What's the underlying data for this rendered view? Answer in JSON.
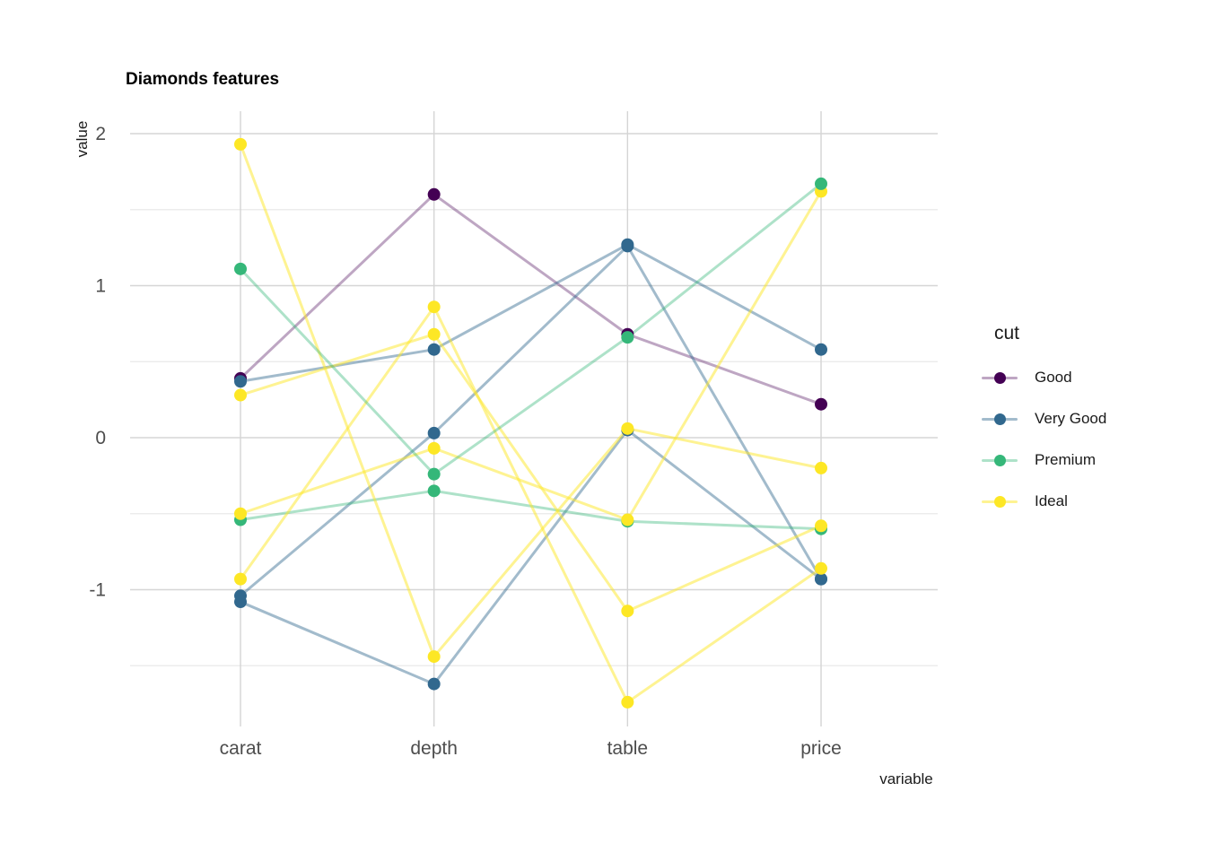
{
  "chart_data": {
    "type": "line",
    "subtype": "parallel-coordinates",
    "title": "Diamonds features",
    "xlabel": "variable",
    "ylabel": "value",
    "categories": [
      "carat",
      "depth",
      "table",
      "price"
    ],
    "y_ticks": [
      2,
      1,
      0,
      -1
    ],
    "y_minor_ticks": [
      1.5,
      0.5,
      -0.5,
      -1.5
    ],
    "ylim": [
      -1.9,
      2.15
    ],
    "grid": "on",
    "legend": {
      "title": "cut",
      "position": "right",
      "entries": [
        {
          "label": "Good",
          "color": "#440154"
        },
        {
          "label": "Very Good",
          "color": "#31688e"
        },
        {
          "label": "Premium",
          "color": "#35b779"
        },
        {
          "label": "Ideal",
          "color": "#fde725"
        }
      ]
    },
    "rows": [
      {
        "cut": "Good",
        "values": [
          0.39,
          1.6,
          0.68,
          0.22
        ]
      },
      {
        "cut": "Very Good",
        "values": [
          0.37,
          0.58,
          1.27,
          0.58
        ]
      },
      {
        "cut": "Very Good",
        "values": [
          -1.04,
          0.03,
          1.26,
          -0.93
        ]
      },
      {
        "cut": "Very Good",
        "values": [
          -1.08,
          -1.62,
          0.05,
          -0.93
        ]
      },
      {
        "cut": "Premium",
        "values": [
          -0.54,
          -0.35,
          -0.55,
          -0.6
        ]
      },
      {
        "cut": "Ideal",
        "values": [
          1.93,
          -1.44,
          0.06,
          -0.2
        ]
      },
      {
        "cut": "Ideal",
        "values": [
          0.28,
          0.68,
          -1.14,
          -0.58
        ]
      },
      {
        "cut": "Ideal",
        "values": [
          -0.5,
          -0.07,
          -0.54,
          1.62
        ]
      },
      {
        "cut": "Ideal",
        "values": [
          -0.93,
          0.86,
          -1.74,
          -0.86
        ]
      },
      {
        "cut": "Premium",
        "values": [
          1.11,
          -0.24,
          0.66,
          1.67
        ]
      }
    ]
  }
}
